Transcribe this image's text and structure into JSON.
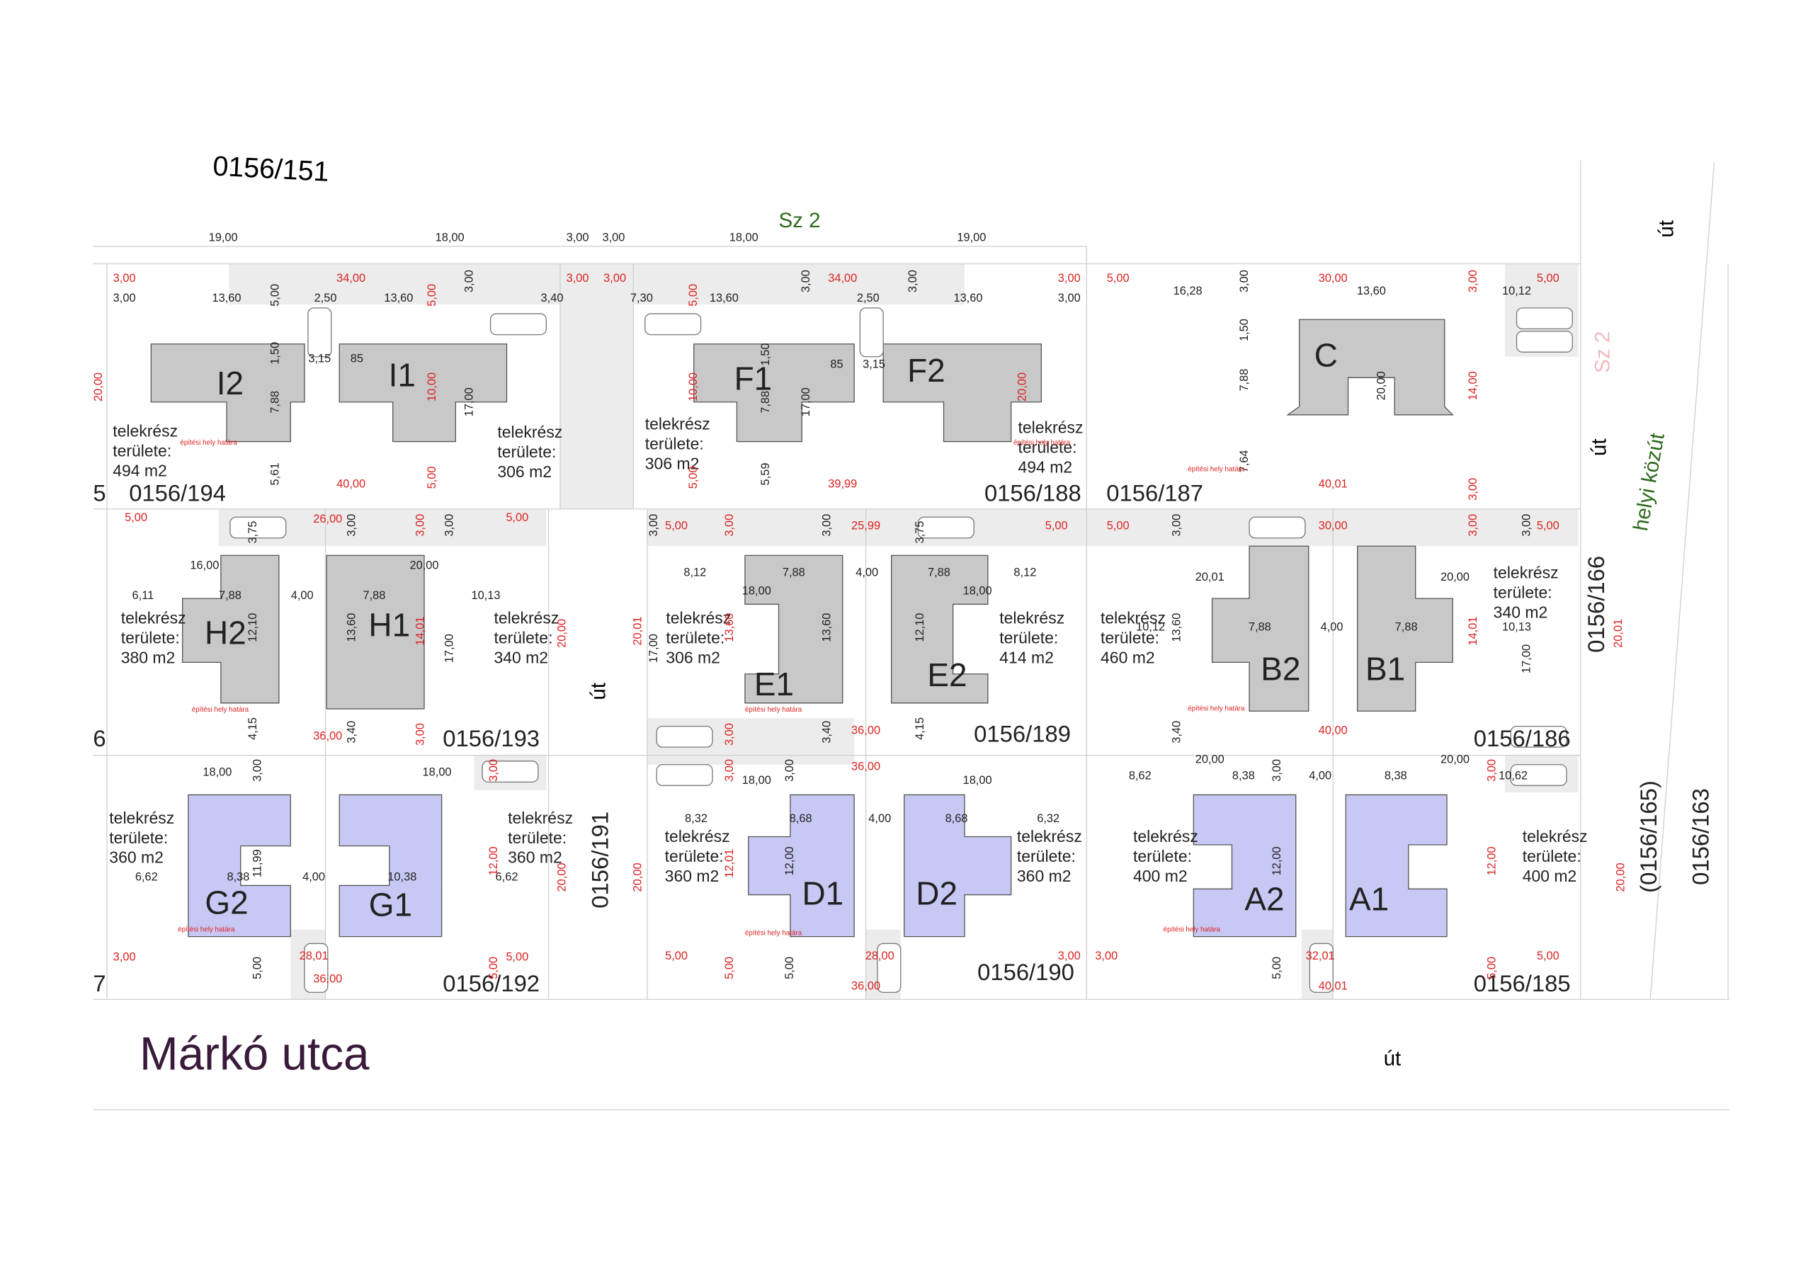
{
  "header": {
    "parcel_top": "0156/151",
    "zone_label": "Sz 2"
  },
  "top_dimensions": [
    "19,00",
    "18,00",
    "3,00",
    "3,00",
    "18,00",
    "19,00"
  ],
  "buildings": [
    "I2",
    "I1",
    "F1",
    "F2",
    "C",
    "H2",
    "H1",
    "E1",
    "E2",
    "B2",
    "B1",
    "G2",
    "G1",
    "D1",
    "D2",
    "A2",
    "A1"
  ],
  "plots": [
    {
      "line1": "telekrész",
      "line2": "területe:",
      "area": "494 m2"
    },
    {
      "line1": "telekrész",
      "line2": "területe:",
      "area": "306 m2"
    },
    {
      "line1": "telekrész",
      "line2": "területe:",
      "area": "306 m2"
    },
    {
      "line1": "telekrész",
      "line2": "területe:",
      "area": "494 m2"
    },
    {
      "line1": "telekrész",
      "line2": "területe:",
      "area": "380 m2"
    },
    {
      "line1": "telekrész",
      "line2": "területe:",
      "area": "340 m2"
    },
    {
      "line1": "telekrész",
      "line2": "területe:",
      "area": "306 m2"
    },
    {
      "line1": "telekrész",
      "line2": "területe:",
      "area": "414 m2"
    },
    {
      "line1": "telekrész",
      "line2": "területe:",
      "area": "460 m2"
    },
    {
      "line1": "telekrész",
      "line2": "területe:",
      "area": "340 m2"
    },
    {
      "line1": "telekrész",
      "line2": "területe:",
      "area": "360 m2"
    },
    {
      "line1": "telekrész",
      "line2": "területe:",
      "area": "360 m2"
    },
    {
      "line1": "telekrész",
      "line2": "területe:",
      "area": "360 m2"
    },
    {
      "line1": "telekrész",
      "line2": "területe:",
      "area": "360 m2"
    },
    {
      "line1": "telekrész",
      "line2": "területe:",
      "area": "400 m2"
    },
    {
      "line1": "telekrész",
      "line2": "területe:",
      "area": "400 m2"
    }
  ],
  "parcels": [
    "0156/194",
    "0156/188",
    "0156/187",
    "0156/193",
    "0156/189",
    "0156/186",
    "0156/192",
    "0156/190",
    "0156/185"
  ],
  "parcels_rotated": [
    "0156/191",
    "0156/166",
    "(0156/165)",
    "0156/163"
  ],
  "row_markers": [
    "5",
    "6",
    "7"
  ],
  "streets": {
    "main": "Márkó utca",
    "road_bottom": "út",
    "road_middle": "út",
    "road_top_right": "út",
    "road_right": "út",
    "local_road": "helyi közút",
    "zone_right": "Sz 2"
  },
  "dimensions_red": [
    "3,00",
    "34,00",
    "3,00",
    "3,00",
    "34,00",
    "3,00",
    "5,00",
    "30,00",
    "5,00",
    "40,00",
    "39,99",
    "40,01",
    "5,00",
    "26,00",
    "5,00",
    "5,00",
    "25,99",
    "5,00",
    "5,00",
    "30,00",
    "5,00",
    "36,00",
    "36,00",
    "40,00",
    "36,00",
    "3,00",
    "28,01",
    "5,00",
    "5,00",
    "28,00",
    "3,00",
    "3,00",
    "32,01",
    "5,00",
    "36,00",
    "36,00",
    "40,01"
  ],
  "dimensions_black": [
    "3,00",
    "13,60",
    "2,50",
    "13,60",
    "3,40",
    "7,30",
    "13,60",
    "2,50",
    "13,60",
    "3,00",
    "16,28",
    "13,60",
    "10,12",
    "3,15",
    "85",
    "85",
    "3,15",
    "16,00",
    "7,88",
    "4,00",
    "7,88",
    "20,00",
    "10,13",
    "6,11",
    "8,12",
    "7,88",
    "4,00",
    "7,88",
    "8,12",
    "18,00",
    "18,00",
    "20,01",
    "7,88",
    "4,00",
    "7,88",
    "20,00",
    "10,13",
    "10,12",
    "18,00",
    "18,00",
    "6,62",
    "8,38",
    "4,00",
    "10,38",
    "6,62",
    "18,00",
    "18,00",
    "8,32",
    "8,68",
    "4,00",
    "8,68",
    "6,32",
    "20,00",
    "8,62",
    "8,38",
    "4,00",
    "8,38",
    "20,00",
    "10,62"
  ],
  "dimensions_rotated": [
    "5,00",
    "1,50",
    "7,88",
    "5,61",
    "3,00",
    "5,00",
    "10,00",
    "5,00",
    "17,00",
    "20,00",
    "3,00",
    "5,00",
    "10,00",
    "1,50",
    "7,88",
    "5,59",
    "17,00",
    "5,00",
    "20,00",
    "3,00",
    "3,00",
    "1,50",
    "7,88",
    "7,64",
    "20,00",
    "14,00",
    "3,00",
    "3,00",
    "3,75",
    "12,10",
    "4,15",
    "3,00",
    "13,60",
    "3,40",
    "3,00",
    "14,01",
    "3,00",
    "3,00",
    "17,00",
    "20,00",
    "3,00",
    "20,01",
    "17,00",
    "3,00",
    "13,60",
    "3,00",
    "13,60",
    "3,40",
    "3,00",
    "3,75",
    "12,10",
    "4,15",
    "3,00",
    "13,60",
    "3,40",
    "14,01",
    "3,00",
    "3,00",
    "17,00",
    "20,01",
    "3,00",
    "11,99",
    "5,00",
    "3,00",
    "12,00",
    "5,00",
    "20,00",
    "20,00",
    "3,00",
    "12,01",
    "5,00",
    "3,00",
    "12,00",
    "5,00",
    "3,00",
    "12,00",
    "5,00",
    "3,00",
    "12,00",
    "5,00",
    "20,00"
  ],
  "boundary_notes": [
    "építési hely határa",
    "építési hely határa",
    "építési hely határa",
    "építési hely határa",
    "építési hely határa",
    "építési hely határa",
    "építési hely határa",
    "építési hely határa",
    "építési hely határa"
  ]
}
